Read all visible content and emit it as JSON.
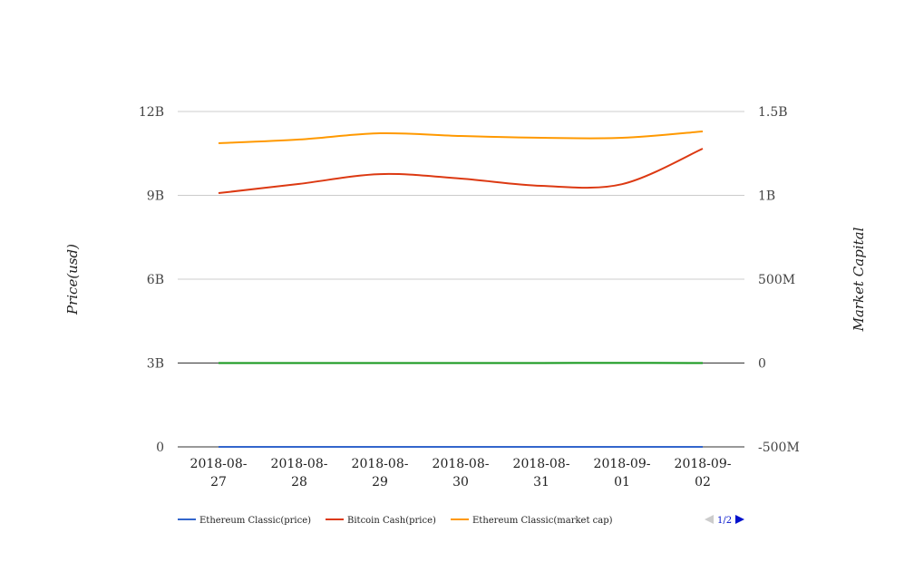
{
  "chart_data": {
    "type": "line",
    "x": [
      "2018-08-27",
      "2018-08-28",
      "2018-08-29",
      "2018-08-30",
      "2018-08-31",
      "2018-09-01",
      "2018-09-02"
    ],
    "ylabel_left": "Price(usd)",
    "ylabel_right": "Market Capital",
    "yticks_left": [
      "0",
      "3B",
      "6B",
      "9B",
      "12B"
    ],
    "yticks_right": [
      "-500M",
      "0",
      "500M",
      "1B",
      "1.5B"
    ],
    "ylim_left": [
      0,
      12000000000
    ],
    "ylim_right": [
      -500000000,
      1500000000
    ],
    "grid": true,
    "legend_placement": "bottom",
    "legend_page": "1/2",
    "series": [
      {
        "name": "Ethereum Classic(price)",
        "axis": "left",
        "color": "#3366cc",
        "values": [
          12.8,
          13.1,
          13.5,
          13.2,
          13.0,
          13.0,
          13.4
        ]
      },
      {
        "name": "Bitcoin Cash(price)",
        "axis": "left",
        "color": "#dc3912",
        "values": [
          9080000000,
          9410000000,
          9760000000,
          9600000000,
          9340000000,
          9400000000,
          10670000000
        ]
      },
      {
        "name": "Ethereum Classic(market cap)",
        "axis": "right",
        "color": "#ff9900",
        "values": [
          1311000000,
          1333000000,
          1370000000,
          1354000000,
          1343000000,
          1343000000,
          1381000000
        ]
      },
      {
        "axis": "right",
        "color": "#109618",
        "values": [
          0,
          0,
          0,
          0,
          0,
          1000000,
          0
        ]
      }
    ]
  }
}
